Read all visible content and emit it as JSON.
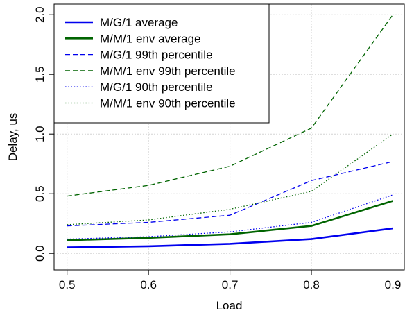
{
  "chart_data": {
    "type": "line",
    "xlabel": "Load",
    "ylabel": "Delay, us",
    "xlim": [
      0.5,
      0.9
    ],
    "ylim": [
      0.0,
      2.0
    ],
    "x": [
      0.5,
      0.6,
      0.7,
      0.8,
      0.9
    ],
    "x_ticks": [
      "0.5",
      "0.6",
      "0.7",
      "0.8",
      "0.9"
    ],
    "y_tick_values": [
      0.0,
      0.5,
      1.0,
      1.5,
      2.0
    ],
    "y_ticks": [
      "0.0",
      "0.5",
      "1.0",
      "1.5",
      "2.0"
    ],
    "grid": true,
    "legend_position": "top-left",
    "series": [
      {
        "name": "M/G/1 average",
        "color": "#0000ee",
        "style": "solid",
        "values": [
          0.05,
          0.06,
          0.08,
          0.12,
          0.21
        ]
      },
      {
        "name": "M/M/1 env average",
        "color": "#006400",
        "style": "solid",
        "values": [
          0.11,
          0.13,
          0.16,
          0.23,
          0.44
        ]
      },
      {
        "name": "M/G/1 99th percentile",
        "color": "#0000ee",
        "style": "dashed",
        "values": [
          0.23,
          0.26,
          0.32,
          0.61,
          0.77
        ]
      },
      {
        "name": "M/M/1 env 99th percentile",
        "color": "#006400",
        "style": "dashed",
        "values": [
          0.48,
          0.57,
          0.73,
          1.05,
          2.0
        ]
      },
      {
        "name": "M/G/1 90th percentile",
        "color": "#0000ee",
        "style": "dotted",
        "values": [
          0.12,
          0.14,
          0.18,
          0.26,
          0.49
        ]
      },
      {
        "name": "M/M/1 env 90th percentile",
        "color": "#006400",
        "style": "dotted",
        "values": [
          0.24,
          0.28,
          0.37,
          0.52,
          1.0
        ]
      }
    ]
  }
}
